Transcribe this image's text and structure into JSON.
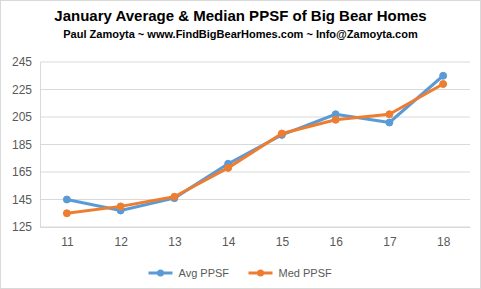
{
  "chart_data": {
    "type": "line",
    "title": "January Average & Median PPSF of Big Bear Homes",
    "subtitle": "Paul Zamoyta ~ www.FindBigBearHomes.com ~ Info@Zamoyta.com",
    "categories": [
      "11",
      "12",
      "13",
      "14",
      "15",
      "16",
      "17",
      "18"
    ],
    "series": [
      {
        "name": "Avg PPSF",
        "color": "#5b9bd5",
        "marker": "circle",
        "values": [
          145,
          137,
          146,
          171,
          192,
          207,
          201,
          235
        ]
      },
      {
        "name": "Med PPSF",
        "color": "#ed7d31",
        "marker": "circle",
        "values": [
          135,
          140,
          147,
          168,
          193,
          203,
          207,
          229
        ]
      }
    ],
    "ylim": [
      125,
      245
    ],
    "yticks": [
      125,
      145,
      165,
      185,
      205,
      225,
      245
    ],
    "grid": true,
    "legend": "bottom"
  }
}
